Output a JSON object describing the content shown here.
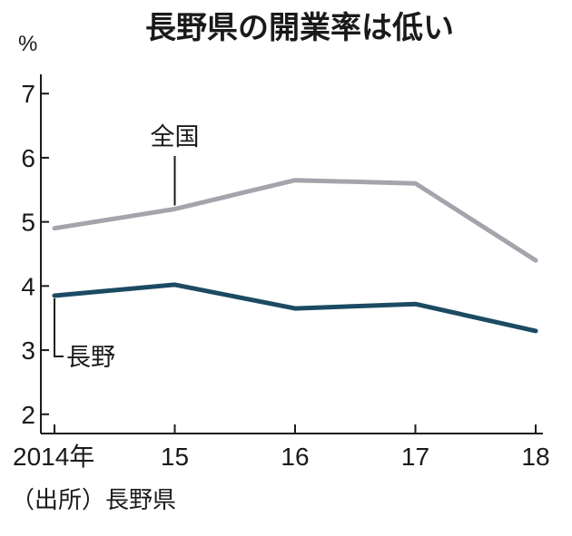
{
  "chart_data": {
    "type": "line",
    "title": "長野県の開業率は低い",
    "y_unit": "%",
    "x": [
      "2014年",
      "15",
      "16",
      "17",
      "18"
    ],
    "ylim": [
      1.7,
      7.3
    ],
    "yticks": [
      2,
      3,
      4,
      5,
      6,
      7
    ],
    "grid": false,
    "legend": "none (direct labels)",
    "series": [
      {
        "name": "全国",
        "values": [
          4.9,
          5.2,
          5.65,
          5.6,
          4.4
        ],
        "color": "#a5a3ac"
      },
      {
        "name": "長野",
        "values": [
          3.85,
          4.02,
          3.65,
          3.72,
          3.3
        ],
        "color": "#1c4a63"
      }
    ],
    "source": "（出所）長野県"
  },
  "colors": {
    "axis": "#1a1a1a",
    "text": "#1a1a1a",
    "zenkoku": "#a5a3ac",
    "nagano": "#1c4a63"
  }
}
